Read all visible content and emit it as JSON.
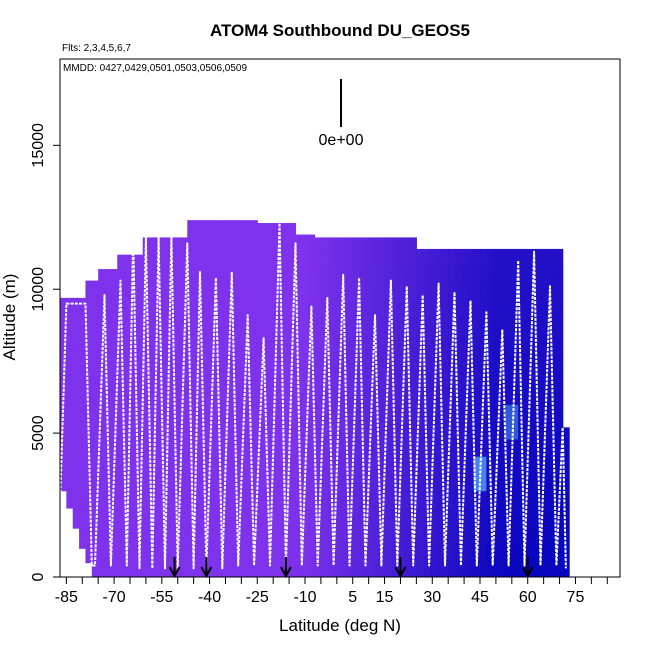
{
  "chart_data": {
    "type": "heatmap",
    "title": "ATOM4 Southbound DU_GEOS5",
    "subtitle_flights": "Flts: 2,3,4,5,6,7",
    "subtitle_dates": "MMDD: 0427,0429,0501,0503,0506,0509",
    "xlabel": "Latitude (deg N)",
    "ylabel": "Altitude (m)",
    "xlim": [
      -87,
      89
    ],
    "ylim": [
      0,
      18000
    ],
    "x_ticks": [
      "-85",
      "-70",
      "-55",
      "-40",
      "-25",
      "-10",
      "5",
      "15",
      "30",
      "45",
      "60",
      "75"
    ],
    "y_ticks": [
      "0",
      "5000",
      "10000",
      "15000"
    ],
    "legend_value": "0e+00",
    "arrow_latitudes": [
      -51,
      -41,
      -16,
      20,
      60
    ],
    "flight_track": [
      [
        -87,
        2500
      ],
      [
        -85,
        9500
      ],
      [
        -79,
        9500
      ],
      [
        -77,
        400
      ],
      [
        -76,
        400
      ],
      [
        -73,
        9800
      ],
      [
        -71,
        400
      ],
      [
        -68,
        10300
      ],
      [
        -66,
        400
      ],
      [
        -64,
        11800
      ],
      [
        -62,
        300
      ],
      [
        -60,
        11800
      ],
      [
        -58,
        300
      ],
      [
        -56,
        11800
      ],
      [
        -54,
        300
      ],
      [
        -52,
        11900
      ],
      [
        -50,
        300
      ],
      [
        -47,
        11600
      ],
      [
        -45,
        300
      ],
      [
        -43,
        10600
      ],
      [
        -41,
        300
      ],
      [
        -38,
        10400
      ],
      [
        -36,
        300
      ],
      [
        -33,
        10600
      ],
      [
        -31,
        400
      ],
      [
        -28,
        9100
      ],
      [
        -26,
        400
      ],
      [
        -23,
        8300
      ],
      [
        -21,
        400
      ],
      [
        -18,
        12300
      ],
      [
        -16,
        400
      ],
      [
        -13,
        11600
      ],
      [
        -11,
        400
      ],
      [
        -8,
        9400
      ],
      [
        -6,
        400
      ],
      [
        -3,
        9700
      ],
      [
        -1,
        400
      ],
      [
        2,
        10500
      ],
      [
        4,
        400
      ],
      [
        7,
        10400
      ],
      [
        9,
        400
      ],
      [
        12,
        9100
      ],
      [
        14,
        400
      ],
      [
        17,
        10300
      ],
      [
        19,
        400
      ],
      [
        22,
        10100
      ],
      [
        24,
        400
      ],
      [
        27,
        9800
      ],
      [
        29,
        400
      ],
      [
        32,
        10200
      ],
      [
        34,
        400
      ],
      [
        37,
        9900
      ],
      [
        39,
        400
      ],
      [
        42,
        9600
      ],
      [
        44,
        400
      ],
      [
        47,
        9200
      ],
      [
        49,
        400
      ],
      [
        52,
        8600
      ],
      [
        54,
        400
      ],
      [
        57,
        11000
      ],
      [
        59,
        400
      ],
      [
        62,
        11300
      ],
      [
        64,
        400
      ],
      [
        67,
        10100
      ],
      [
        69,
        400
      ],
      [
        71,
        5200
      ],
      [
        72,
        300
      ]
    ]
  }
}
